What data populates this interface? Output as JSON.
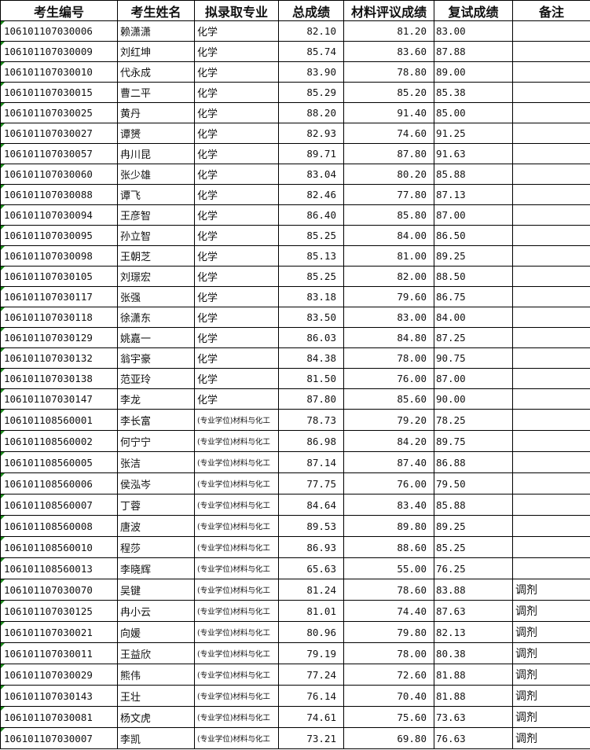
{
  "headers": [
    "考生编号",
    "考生姓名",
    "拟录取专业",
    "总成绩",
    "材料评议成绩",
    "复试成绩",
    "备注"
  ],
  "rows": [
    [
      "106101107030006",
      "赖潇潇",
      "化学",
      "82.10",
      "81.20",
      "83.00",
      ""
    ],
    [
      "106101107030009",
      "刘红坤",
      "化学",
      "85.74",
      "83.60",
      "87.88",
      ""
    ],
    [
      "106101107030010",
      "代永成",
      "化学",
      "83.90",
      "78.80",
      "89.00",
      ""
    ],
    [
      "106101107030015",
      "曹二平",
      "化学",
      "85.29",
      "85.20",
      "85.38",
      ""
    ],
    [
      "106101107030025",
      "黄丹",
      "化学",
      "88.20",
      "91.40",
      "85.00",
      ""
    ],
    [
      "106101107030027",
      "谭赟",
      "化学",
      "82.93",
      "74.60",
      "91.25",
      ""
    ],
    [
      "106101107030057",
      "冉川昆",
      "化学",
      "89.71",
      "87.80",
      "91.63",
      ""
    ],
    [
      "106101107030060",
      "张少雄",
      "化学",
      "83.04",
      "80.20",
      "85.88",
      ""
    ],
    [
      "106101107030088",
      "谭飞",
      "化学",
      "82.46",
      "77.80",
      "87.13",
      ""
    ],
    [
      "106101107030094",
      "王彦智",
      "化学",
      "86.40",
      "85.80",
      "87.00",
      ""
    ],
    [
      "106101107030095",
      "孙立智",
      "化学",
      "85.25",
      "84.00",
      "86.50",
      ""
    ],
    [
      "106101107030098",
      "王朝芝",
      "化学",
      "85.13",
      "81.00",
      "89.25",
      ""
    ],
    [
      "106101107030105",
      "刘璟宏",
      "化学",
      "85.25",
      "82.00",
      "88.50",
      ""
    ],
    [
      "106101107030117",
      "张强",
      "化学",
      "83.18",
      "79.60",
      "86.75",
      ""
    ],
    [
      "106101107030118",
      "徐潇东",
      "化学",
      "83.50",
      "83.00",
      "84.00",
      ""
    ],
    [
      "106101107030129",
      "姚嘉一",
      "化学",
      "86.03",
      "84.80",
      "87.25",
      ""
    ],
    [
      "106101107030132",
      "翁宇豪",
      "化学",
      "84.38",
      "78.00",
      "90.75",
      ""
    ],
    [
      "106101107030138",
      "范亚玲",
      "化学",
      "81.50",
      "76.00",
      "87.00",
      ""
    ],
    [
      "106101107030147",
      "李龙",
      "化学",
      "87.80",
      "85.60",
      "90.00",
      ""
    ],
    [
      "106101108560001",
      "李长富",
      "(专业学位)材料与化工",
      "78.73",
      "79.20",
      "78.25",
      ""
    ],
    [
      "106101108560002",
      "何宁宁",
      "(专业学位)材料与化工",
      "86.98",
      "84.20",
      "89.75",
      ""
    ],
    [
      "106101108560005",
      "张洁",
      "(专业学位)材料与化工",
      "87.14",
      "87.40",
      "86.88",
      ""
    ],
    [
      "106101108560006",
      "侯泓岑",
      "(专业学位)材料与化工",
      "77.75",
      "76.00",
      "79.50",
      ""
    ],
    [
      "106101108560007",
      "丁蓉",
      "(专业学位)材料与化工",
      "84.64",
      "83.40",
      "85.88",
      ""
    ],
    [
      "106101108560008",
      "唐波",
      "(专业学位)材料与化工",
      "89.53",
      "89.80",
      "89.25",
      ""
    ],
    [
      "106101108560010",
      "程莎",
      "(专业学位)材料与化工",
      "86.93",
      "88.60",
      "85.25",
      ""
    ],
    [
      "106101108560013",
      "李晓辉",
      "(专业学位)材料与化工",
      "65.63",
      "55.00",
      "76.25",
      ""
    ],
    [
      "106101107030070",
      "吴键",
      "(专业学位)材料与化工",
      "81.24",
      "78.60",
      "83.88",
      "调剂"
    ],
    [
      "106101107030125",
      "冉小云",
      "(专业学位)材料与化工",
      "81.01",
      "74.40",
      "87.63",
      "调剂"
    ],
    [
      "106101107030021",
      "向媛",
      "(专业学位)材料与化工",
      "80.96",
      "79.80",
      "82.13",
      "调剂"
    ],
    [
      "106101107030011",
      "王益欣",
      "(专业学位)材料与化工",
      "79.19",
      "78.00",
      "80.38",
      "调剂"
    ],
    [
      "106101107030029",
      "熊伟",
      "(专业学位)材料与化工",
      "77.24",
      "72.60",
      "81.88",
      "调剂"
    ],
    [
      "106101107030143",
      "王壮",
      "(专业学位)材料与化工",
      "76.14",
      "70.40",
      "81.88",
      "调剂"
    ],
    [
      "106101107030081",
      "杨文虎",
      "(专业学位)材料与化工",
      "74.61",
      "75.60",
      "73.63",
      "调剂"
    ],
    [
      "106101107030007",
      "李凯",
      "(专业学位)材料与化工",
      "73.21",
      "69.80",
      "76.63",
      "调剂"
    ]
  ]
}
